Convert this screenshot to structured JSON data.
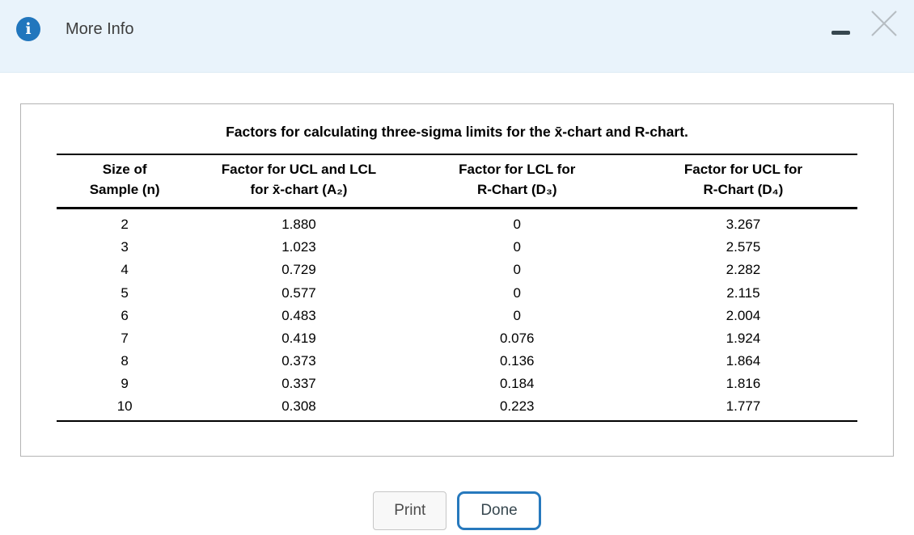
{
  "dialog": {
    "title": "More Info",
    "info_icon_glyph": "i"
  },
  "panel": {
    "table": {
      "title": "Factors for calculating three-sigma limits for the x̄-chart and R-chart.",
      "headers": [
        "Size of\nSample (n)",
        "Factor for UCL and LCL\nfor x̄-chart (A₂)",
        "Factor for LCL for\nR-Chart (D₃)",
        "Factor for UCL for\nR-Chart (D₄)"
      ],
      "rows": [
        [
          "2",
          "1.880",
          "0",
          "3.267"
        ],
        [
          "3",
          "1.023",
          "0",
          "2.575"
        ],
        [
          "4",
          "0.729",
          "0",
          "2.282"
        ],
        [
          "5",
          "0.577",
          "0",
          "2.115"
        ],
        [
          "6",
          "0.483",
          "0",
          "2.004"
        ],
        [
          "7",
          "0.419",
          "0.076",
          "1.924"
        ],
        [
          "8",
          "0.373",
          "0.136",
          "1.864"
        ],
        [
          "9",
          "0.337",
          "0.184",
          "1.816"
        ],
        [
          "10",
          "0.308",
          "0.223",
          "1.777"
        ]
      ]
    }
  },
  "buttons": {
    "print_label": "Print",
    "done_label": "Done"
  },
  "colors": {
    "accent_blue": "#2176bd",
    "header_bg": "#e9f3fb",
    "minimize_dark": "#37474f",
    "close_gray": "#b6bdc2"
  }
}
